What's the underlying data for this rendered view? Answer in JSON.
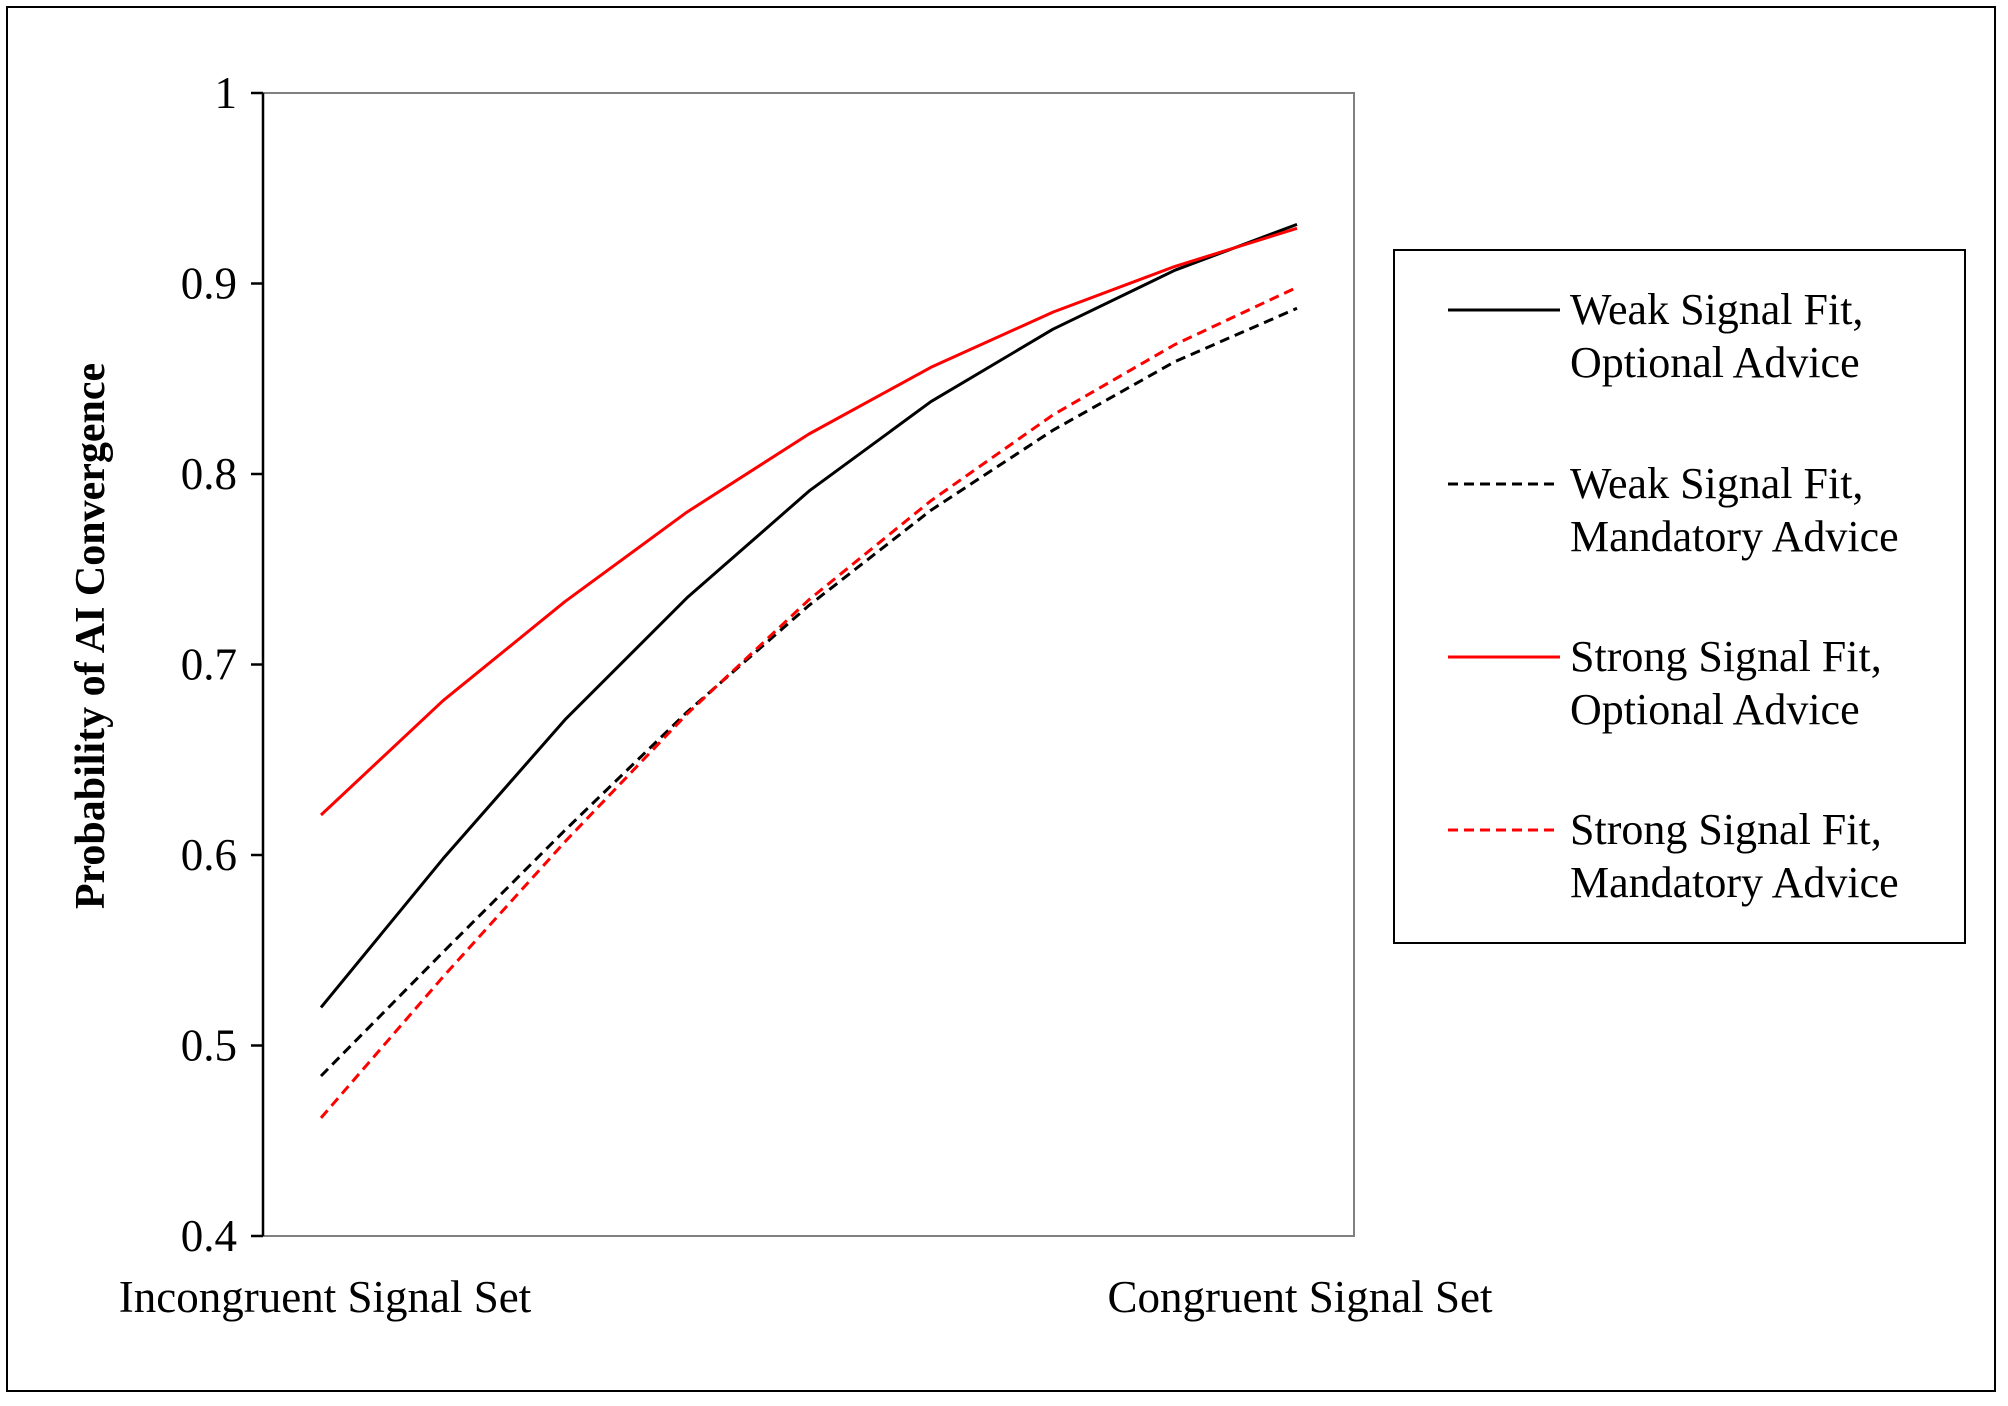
{
  "chart_data": {
    "type": "line",
    "title": "",
    "xlabel": "",
    "ylabel": "Probability of AI Convergence",
    "ylim": [
      0.4,
      1.0
    ],
    "yticks": [
      "0.4",
      "0.5",
      "0.6",
      "0.7",
      "0.8",
      "0.9",
      "1"
    ],
    "xtick_labels": [
      "Incongruent Signal Set",
      "Congruent Signal Set"
    ],
    "x": [
      0,
      1,
      2,
      3,
      4,
      5,
      6,
      7,
      8
    ],
    "grid": false,
    "legend_position": "right",
    "series": [
      {
        "name_lines": [
          "Weak Signal Fit,",
          "Optional Advice"
        ],
        "color": "#000000",
        "dash": "solid",
        "values": [
          0.52,
          0.598,
          0.671,
          0.735,
          0.791,
          0.838,
          0.876,
          0.907,
          0.931
        ]
      },
      {
        "name_lines": [
          "Weak Signal Fit,",
          "Mandatory Advice"
        ],
        "color": "#000000",
        "dash": "dashed",
        "values": [
          0.484,
          0.549,
          0.613,
          0.675,
          0.731,
          0.781,
          0.823,
          0.859,
          0.887
        ]
      },
      {
        "name_lines": [
          "Strong Signal Fit,",
          "Optional Advice"
        ],
        "color": "#ff0000",
        "dash": "solid",
        "values": [
          0.621,
          0.681,
          0.733,
          0.78,
          0.821,
          0.856,
          0.885,
          0.909,
          0.929
        ]
      },
      {
        "name_lines": [
          "Strong Signal Fit,",
          "Mandatory Advice"
        ],
        "color": "#ff0000",
        "dash": "dashed",
        "values": [
          0.462,
          0.536,
          0.607,
          0.674,
          0.734,
          0.786,
          0.831,
          0.868,
          0.898
        ]
      }
    ]
  }
}
